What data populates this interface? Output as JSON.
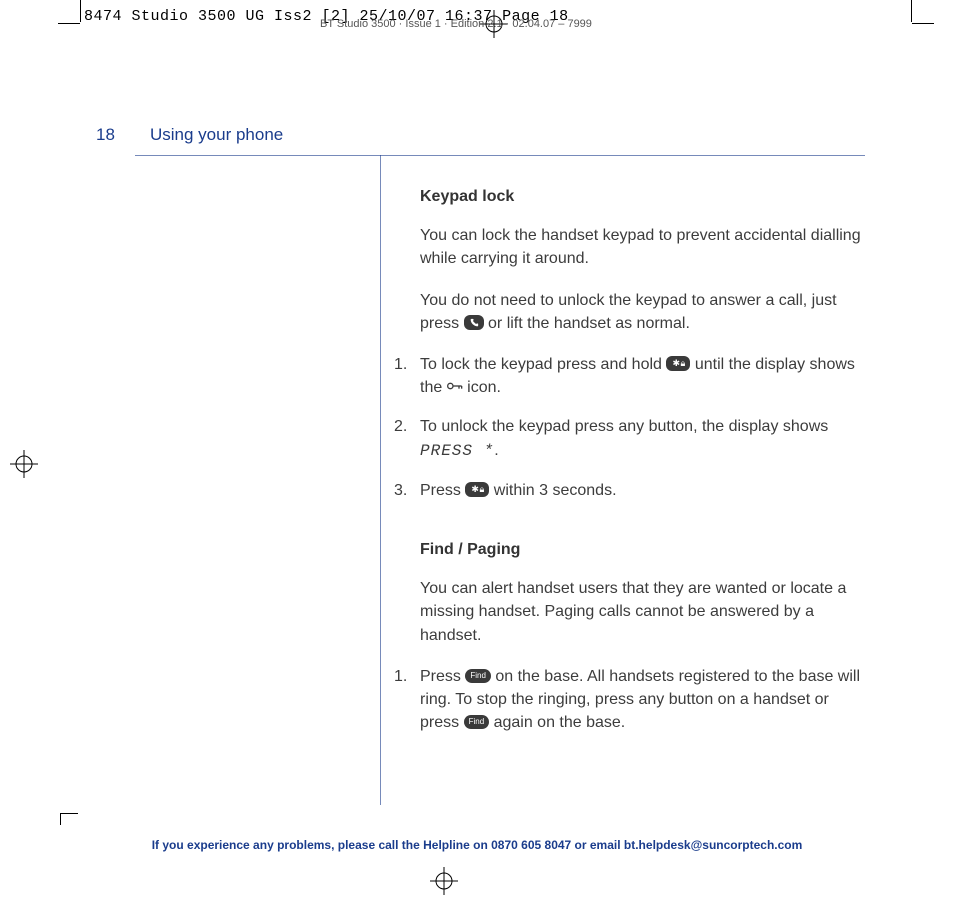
{
  "print": {
    "header_mono": "8474 Studio 3500 UG Iss2 [2]  25/10/07  16:37  Page 18",
    "header_sub": "BT Studio 3500 · Issue 1 · Edition 2.1 · 02.04.07 – 7999"
  },
  "colors": {
    "brand": "#1a3c8c",
    "body": "#3c3c3c",
    "key_bg": "#3a3a3a"
  },
  "page": {
    "number": "18",
    "section": "Using your phone"
  },
  "sections": [
    {
      "heading": "Keypad lock",
      "paragraphs": [
        "You can lock the handset keypad to prevent accidental dialling while carrying it around.",
        {
          "composite": [
            "You do not need to unlock the keypad to answer a call, just press ",
            {
              "icon": "phone"
            },
            " or lift the handset as normal."
          ]
        }
      ],
      "steps": [
        {
          "composite": [
            "To lock the keypad press and hold ",
            {
              "icon": "star"
            },
            " until the display shows the ",
            {
              "icon": "key"
            },
            " icon."
          ]
        },
        {
          "composite": [
            "To unlock the keypad press any button, the display shows ",
            {
              "press": "PRESS *"
            },
            "."
          ]
        },
        {
          "composite": [
            "Press ",
            {
              "icon": "star"
            },
            " within 3 seconds."
          ]
        }
      ]
    },
    {
      "heading": "Find / Paging",
      "paragraphs": [
        "You can alert handset users that they are wanted or locate a missing handset. Paging calls cannot be answered by a handset."
      ],
      "steps": [
        {
          "composite": [
            "Press ",
            {
              "icon": "find"
            },
            " on the base. All handsets registered to the base will ring. To stop the ringing, press any button on a handset or press ",
            {
              "icon": "find"
            },
            " again on the base."
          ]
        }
      ]
    }
  ],
  "footer": "If you experience any problems, please call the Helpline on 0870 605 8047 or email bt.helpdesk@suncorptech.com",
  "icons": {
    "phone_label": "phone-key",
    "star_label": "star-lock-key",
    "key_label": "lock-icon",
    "find_label": "Find"
  }
}
